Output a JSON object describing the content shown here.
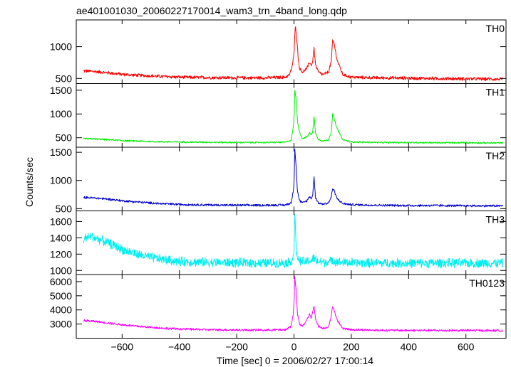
{
  "chart_data": {
    "type": "line",
    "title": "ae401001030_20060227170014_wam3_trn_4band_long.qdp",
    "xlabel": "Time [sec] 0 = 2006/02/27 17:00:14",
    "ylabel": "Counts/sec",
    "xlim": [
      -760,
      740
    ],
    "xticks": [
      -600,
      -400,
      -200,
      0,
      200,
      400,
      600
    ],
    "xticklabels": [
      "−600",
      "−400",
      "−200",
      "0",
      "200",
      "400",
      "600"
    ],
    "grid": false,
    "panels": [
      {
        "name": "TH0",
        "color": "#ff0000",
        "ylim": [
          420,
          1420
        ],
        "yticks": [
          500,
          1000
        ],
        "yticklabels": [
          "500",
          "1000"
        ],
        "series": {
          "x": [
            -735,
            -700,
            -650,
            -600,
            -550,
            -500,
            -450,
            -400,
            -300,
            -200,
            -100,
            -30,
            -15,
            -5,
            0,
            5,
            10,
            15,
            20,
            30,
            45,
            55,
            60,
            65,
            70,
            75,
            85,
            100,
            120,
            130,
            135,
            140,
            150,
            170,
            200,
            300,
            400,
            500,
            600,
            700,
            730
          ],
          "y": [
            620,
            610,
            590,
            565,
            550,
            540,
            530,
            520,
            515,
            510,
            510,
            520,
            560,
            720,
            900,
            1350,
            1100,
            800,
            650,
            600,
            660,
            760,
            700,
            760,
            980,
            720,
            600,
            560,
            600,
            760,
            1100,
            1050,
            800,
            560,
            520,
            510,
            505,
            500,
            495,
            490,
            490
          ],
          "noise": 18
        }
      },
      {
        "name": "TH1",
        "color": "#00ee00",
        "ylim": [
          300,
          1640
        ],
        "yticks": [
          500,
          1000,
          1500
        ],
        "yticklabels": [
          "500",
          "1000",
          "1500"
        ],
        "series": {
          "x": [
            -735,
            -700,
            -650,
            -600,
            -550,
            -500,
            -400,
            -300,
            -200,
            -100,
            -30,
            -10,
            -3,
            0,
            3,
            8,
            12,
            20,
            30,
            45,
            55,
            60,
            65,
            70,
            75,
            85,
            100,
            120,
            130,
            135,
            140,
            150,
            170,
            200,
            300,
            400,
            500,
            600,
            700,
            730
          ],
          "y": [
            480,
            475,
            460,
            440,
            430,
            420,
            410,
            405,
            400,
            400,
            405,
            450,
            700,
            900,
            1500,
            1300,
            850,
            600,
            480,
            520,
            600,
            560,
            620,
            950,
            600,
            470,
            430,
            450,
            620,
            1000,
            900,
            700,
            460,
            410,
            400,
            400,
            395,
            395,
            390,
            390
          ],
          "noise": 12
        }
      },
      {
        "name": "TH2",
        "color": "#0000cc",
        "ylim": [
          460,
          1590
        ],
        "yticks": [
          500,
          1000,
          1500
        ],
        "yticklabels": [
          "500",
          "1000",
          "1500"
        ],
        "series": {
          "x": [
            -735,
            -700,
            -650,
            -600,
            -550,
            -500,
            -450,
            -400,
            -300,
            -200,
            -100,
            -30,
            -10,
            -3,
            0,
            3,
            8,
            12,
            20,
            30,
            45,
            55,
            60,
            65,
            70,
            75,
            85,
            100,
            120,
            130,
            135,
            140,
            150,
            170,
            200,
            300,
            400,
            500,
            600,
            700,
            730
          ],
          "y": [
            700,
            690,
            670,
            640,
            620,
            600,
            585,
            575,
            565,
            560,
            560,
            565,
            600,
            800,
            950,
            1560,
            1200,
            800,
            640,
            600,
            640,
            720,
            680,
            720,
            1080,
            700,
            600,
            580,
            600,
            700,
            860,
            820,
            680,
            590,
            570,
            560,
            555,
            555,
            550,
            550,
            550
          ],
          "noise": 14
        }
      },
      {
        "name": "TH3",
        "color": "#00eeee",
        "ylim": [
          950,
          1730
        ],
        "yticks": [
          1000,
          1200,
          1400,
          1600
        ],
        "yticklabels": [
          "1000",
          "1200",
          "1400",
          "1600"
        ],
        "series": {
          "x": [
            -735,
            -710,
            -680,
            -650,
            -600,
            -550,
            -500,
            -450,
            -400,
            -300,
            -200,
            -100,
            -20,
            -5,
            0,
            3,
            6,
            10,
            20,
            40,
            60,
            70,
            80,
            100,
            130,
            135,
            140,
            160,
            200,
            300,
            400,
            500,
            600,
            700,
            730
          ],
          "y": [
            1380,
            1420,
            1380,
            1340,
            1260,
            1200,
            1160,
            1130,
            1110,
            1100,
            1095,
            1090,
            1095,
            1130,
            1250,
            1700,
            1400,
            1180,
            1110,
            1110,
            1120,
            1150,
            1110,
            1100,
            1110,
            1130,
            1120,
            1100,
            1095,
            1090,
            1090,
            1090,
            1090,
            1090,
            1090
          ],
          "noise": 40
        }
      },
      {
        "name": "TH0123",
        "color": "#ff00ff",
        "ylim": [
          2000,
          6500
        ],
        "yticks": [
          3000,
          4000,
          5000,
          6000
        ],
        "yticklabels": [
          "3000",
          "4000",
          "5000",
          "6000"
        ],
        "series": {
          "x": [
            -735,
            -700,
            -650,
            -600,
            -550,
            -500,
            -450,
            -400,
            -300,
            -200,
            -100,
            -30,
            -10,
            -3,
            0,
            3,
            8,
            12,
            20,
            30,
            45,
            55,
            60,
            65,
            70,
            75,
            85,
            100,
            120,
            130,
            135,
            140,
            150,
            170,
            200,
            300,
            400,
            500,
            600,
            700,
            730
          ],
          "y": [
            3250,
            3200,
            3080,
            2950,
            2850,
            2770,
            2700,
            2650,
            2600,
            2580,
            2570,
            2600,
            2850,
            3700,
            4500,
            6300,
            5200,
            3700,
            2950,
            2850,
            3300,
            3700,
            3400,
            3800,
            4300,
            3400,
            2850,
            2700,
            2800,
            3500,
            4300,
            4000,
            3300,
            2700,
            2600,
            2560,
            2550,
            2550,
            2550,
            2540,
            2540
          ],
          "noise": 55
        }
      }
    ]
  }
}
